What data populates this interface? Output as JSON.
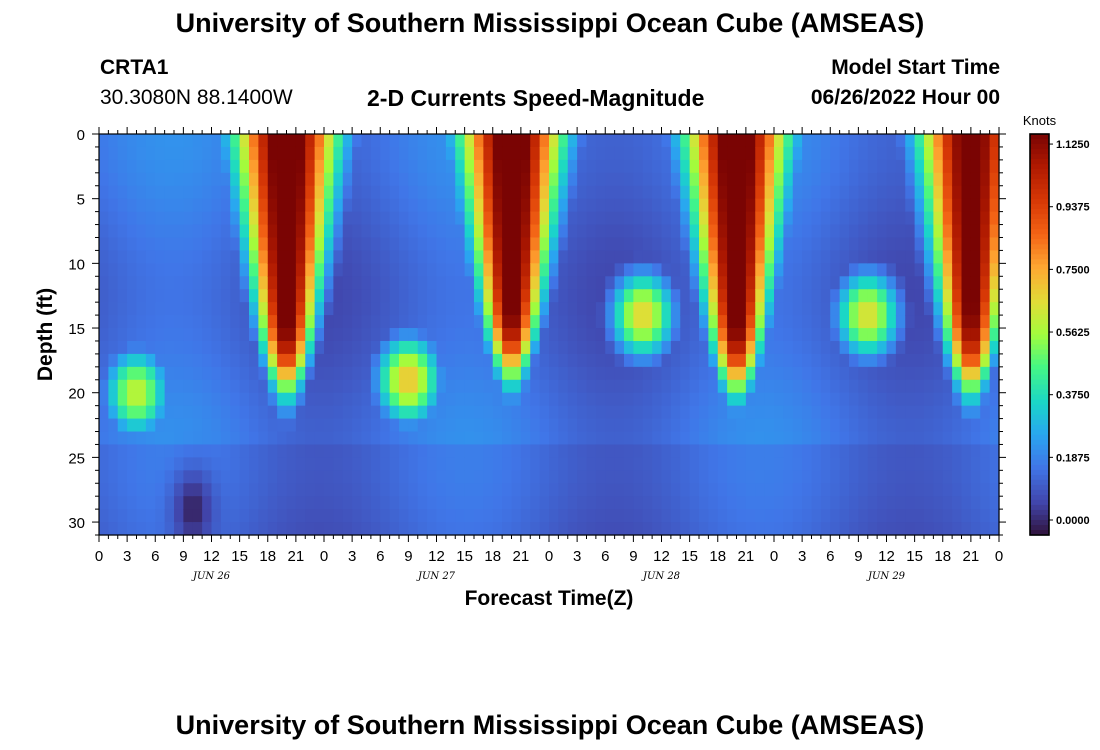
{
  "page": {
    "title": "University of Southern Mississippi Ocean Cube (AMSEAS)",
    "station": "CRTA1",
    "coords": "30.3080N  88.1400W",
    "subtitle": "2-D Currents Speed-Magnitude",
    "model_start_label": "Model Start Time",
    "model_start_value": "06/26/2022 Hour 00",
    "footer_title": "University of Southern Mississippi Ocean Cube (AMSEAS)"
  },
  "chart_data": {
    "type": "heatmap",
    "title": "2-D Currents Speed-Magnitude",
    "xlabel": "Forecast Time(Z)",
    "ylabel": "Depth (ft)",
    "x_range_hours": [
      0,
      96
    ],
    "y_range_ft": [
      0,
      31
    ],
    "x_tick_labels": [
      "0",
      "3",
      "6",
      "9",
      "12",
      "15",
      "18",
      "21",
      "0",
      "3",
      "6",
      "9",
      "12",
      "15",
      "18",
      "21",
      "0",
      "3",
      "6",
      "9",
      "12",
      "15",
      "18",
      "21",
      "0",
      "3",
      "6",
      "9",
      "12",
      "15",
      "18",
      "21",
      "0"
    ],
    "y_ticks": [
      0,
      5,
      10,
      15,
      20,
      25,
      30
    ],
    "date_labels": [
      {
        "label": "JUN 26",
        "hour": 12
      },
      {
        "label": "JUN 27",
        "hour": 36
      },
      {
        "label": "JUN 28",
        "hour": 60
      },
      {
        "label": "JUN 29",
        "hour": 84
      }
    ],
    "colorbar": {
      "unit": "Knots",
      "ticks": [
        "1.1250",
        "0.9375",
        "0.7500",
        "0.5625",
        "0.3750",
        "0.1875",
        "0.0000"
      ],
      "min": 0.0,
      "max": 1.2
    },
    "features": [
      {
        "hour": 20,
        "depth_from": 0,
        "depth_to": 19,
        "peak_knots": 1.2,
        "desc": "strong surface flow"
      },
      {
        "hour": 44,
        "depth_from": 0,
        "depth_to": 18,
        "peak_knots": 1.2,
        "desc": "strong surface flow"
      },
      {
        "hour": 68,
        "depth_from": 0,
        "depth_to": 19,
        "peak_knots": 1.2,
        "desc": "strong surface flow"
      },
      {
        "hour": 93,
        "depth_from": 0,
        "depth_to": 19,
        "peak_knots": 1.15,
        "desc": "strong surface flow"
      },
      {
        "hour": 4,
        "depth": 20,
        "peak_knots": 0.65,
        "desc": "subsurface maximum"
      },
      {
        "hour": 33,
        "depth": 19,
        "peak_knots": 0.75,
        "desc": "subsurface maximum"
      },
      {
        "hour": 58,
        "depth": 14,
        "peak_knots": 0.72,
        "desc": "subsurface maximum"
      },
      {
        "hour": 82,
        "depth": 14,
        "peak_knots": 0.7,
        "desc": "subsurface maximum"
      },
      {
        "hour": 10,
        "depth": 29,
        "peak_knots": 0.0,
        "desc": "near-zero bottom minimum"
      }
    ]
  }
}
